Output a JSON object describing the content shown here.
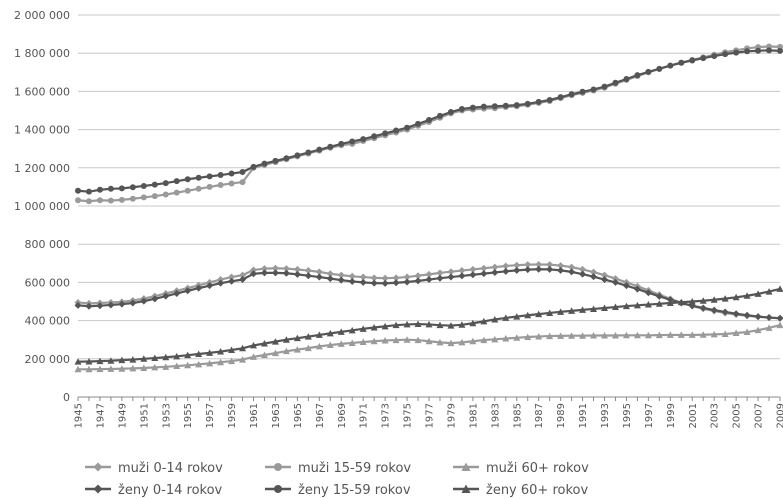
{
  "chart_data": {
    "type": "line",
    "title": "",
    "xlabel": "",
    "ylabel": "",
    "x": [
      1945,
      1946,
      1947,
      1948,
      1949,
      1950,
      1951,
      1952,
      1953,
      1954,
      1955,
      1956,
      1957,
      1958,
      1959,
      1960,
      1961,
      1962,
      1963,
      1964,
      1965,
      1966,
      1967,
      1968,
      1969,
      1970,
      1971,
      1972,
      1973,
      1974,
      1975,
      1976,
      1977,
      1978,
      1979,
      1980,
      1981,
      1982,
      1983,
      1984,
      1985,
      1986,
      1987,
      1988,
      1989,
      1990,
      1991,
      1992,
      1993,
      1994,
      1995,
      1996,
      1997,
      1998,
      1999,
      2000,
      2001,
      2002,
      2003,
      2004,
      2005,
      2006,
      2007,
      2008,
      2009
    ],
    "xtick_labels": [
      "1945",
      "1947",
      "1949",
      "1951",
      "1953",
      "1955",
      "1957",
      "1959",
      "1961",
      "1963",
      "1965",
      "1967",
      "1969",
      "1971",
      "1973",
      "1975",
      "1977",
      "1979",
      "1981",
      "1983",
      "1985",
      "1987",
      "1989",
      "1991",
      "1993",
      "1995",
      "1997",
      "1999",
      "2001",
      "2003",
      "2005",
      "2007",
      "2009"
    ],
    "ylim": [
      0,
      2000000
    ],
    "ytick_labels": [
      "0",
      "200 000",
      "400 000",
      "600 000",
      "800 000",
      "1 000 000",
      "1 200 000",
      "1 400 000",
      "1 600 000",
      "1 800 000",
      "2 000 000"
    ],
    "grid": true,
    "legend_position": "bottom",
    "series": [
      {
        "name": "muži 0-14 rokov",
        "color": "#9a9a9a",
        "marker": "diamond",
        "values": [
          495000,
          490000,
          492000,
          495000,
          498000,
          505000,
          515000,
          528000,
          542000,
          556000,
          570000,
          585000,
          600000,
          615000,
          628000,
          638000,
          665000,
          672000,
          674000,
          672000,
          668000,
          662000,
          655000,
          645000,
          638000,
          632000,
          628000,
          624000,
          622000,
          624000,
          628000,
          635000,
          642000,
          650000,
          656000,
          662000,
          668000,
          674000,
          680000,
          686000,
          690000,
          693000,
          694000,
          693000,
          688000,
          680000,
          668000,
          654000,
          638000,
          620000,
          600000,
          580000,
          558000,
          536000,
          514000,
          494000,
          476000,
          462000,
          450000,
          440000,
          432000,
          425000,
          420000,
          416000,
          413000
        ]
      },
      {
        "name": "muži 15-59 rokov",
        "color": "#9a9a9a",
        "marker": "circle",
        "values": [
          1030000,
          1025000,
          1030000,
          1028000,
          1032000,
          1038000,
          1045000,
          1052000,
          1060000,
          1070000,
          1080000,
          1090000,
          1100000,
          1110000,
          1118000,
          1125000,
          1200000,
          1215000,
          1230000,
          1245000,
          1260000,
          1275000,
          1290000,
          1305000,
          1318000,
          1325000,
          1340000,
          1355000,
          1370000,
          1385000,
          1400000,
          1420000,
          1440000,
          1462000,
          1485000,
          1500000,
          1505000,
          1510000,
          1512000,
          1518000,
          1522000,
          1530000,
          1540000,
          1550000,
          1565000,
          1580000,
          1592000,
          1605000,
          1620000,
          1640000,
          1660000,
          1680000,
          1700000,
          1718000,
          1735000,
          1750000,
          1765000,
          1778000,
          1792000,
          1805000,
          1815000,
          1825000,
          1832000,
          1835000,
          1833000
        ]
      },
      {
        "name": "muži 60+ rokov",
        "color": "#9a9a9a",
        "marker": "triangle",
        "values": [
          145000,
          145000,
          146000,
          147000,
          148000,
          150000,
          152000,
          155000,
          158000,
          162000,
          166000,
          171000,
          176000,
          182000,
          188000,
          196000,
          210000,
          220000,
          230000,
          240000,
          248000,
          256000,
          265000,
          272000,
          278000,
          283000,
          288000,
          292000,
          296000,
          298000,
          300000,
          298000,
          292000,
          286000,
          282000,
          286000,
          292000,
          298000,
          302000,
          306000,
          310000,
          314000,
          317000,
          319000,
          320000,
          321000,
          321000,
          322000,
          322000,
          322000,
          323000,
          323000,
          323000,
          324000,
          325000,
          325000,
          325000,
          326000,
          328000,
          330000,
          335000,
          340000,
          350000,
          362000,
          376000
        ]
      },
      {
        "name": "ženy 0-14 rokov",
        "color": "#555555",
        "marker": "diamond",
        "values": [
          480000,
          475000,
          478000,
          482000,
          486000,
          492000,
          502000,
          514000,
          528000,
          542000,
          556000,
          570000,
          583000,
          596000,
          606000,
          615000,
          645000,
          650000,
          650000,
          648000,
          642000,
          635000,
          628000,
          620000,
          612000,
          605000,
          600000,
          596000,
          595000,
          598000,
          602000,
          608000,
          615000,
          622000,
          628000,
          634000,
          640000,
          646000,
          652000,
          658000,
          663000,
          667000,
          669000,
          668000,
          663000,
          655000,
          643000,
          630000,
          615000,
          600000,
          583000,
          565000,
          546000,
          527000,
          509000,
          492000,
          478000,
          466000,
          455000,
          445000,
          436000,
          428000,
          421000,
          416000,
          412000
        ]
      },
      {
        "name": "ženy 15-59 rokov",
        "color": "#555555",
        "marker": "circle",
        "values": [
          1080000,
          1075000,
          1085000,
          1090000,
          1092000,
          1098000,
          1105000,
          1112000,
          1120000,
          1130000,
          1140000,
          1148000,
          1155000,
          1162000,
          1170000,
          1178000,
          1205000,
          1222000,
          1236000,
          1250000,
          1265000,
          1280000,
          1295000,
          1310000,
          1325000,
          1338000,
          1350000,
          1365000,
          1380000,
          1395000,
          1410000,
          1430000,
          1450000,
          1472000,
          1492000,
          1508000,
          1515000,
          1520000,
          1522000,
          1525000,
          1528000,
          1535000,
          1545000,
          1555000,
          1570000,
          1585000,
          1598000,
          1610000,
          1625000,
          1645000,
          1665000,
          1685000,
          1702000,
          1718000,
          1735000,
          1750000,
          1762000,
          1774000,
          1785000,
          1795000,
          1803000,
          1810000,
          1813000,
          1815000,
          1812000
        ]
      },
      {
        "name": "ženy 60+ rokov",
        "color": "#555555",
        "marker": "triangle",
        "values": [
          185000,
          186000,
          188000,
          190000,
          193000,
          196000,
          200000,
          204000,
          208000,
          213000,
          219000,
          225000,
          231000,
          238000,
          246000,
          255000,
          270000,
          280000,
          290000,
          300000,
          308000,
          316000,
          325000,
          333000,
          341000,
          349000,
          357000,
          364000,
          370000,
          376000,
          380000,
          382000,
          380000,
          376000,
          374000,
          378000,
          386000,
          396000,
          406000,
          414000,
          421000,
          428000,
          434000,
          440000,
          446000,
          451000,
          456000,
          461000,
          466000,
          471000,
          476000,
          480000,
          484000,
          488000,
          492000,
          496000,
          500000,
          504000,
          509000,
          515000,
          522000,
          530000,
          540000,
          552000,
          566000
        ]
      }
    ]
  }
}
